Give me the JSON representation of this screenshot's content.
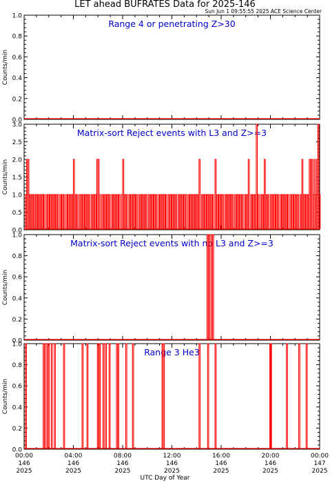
{
  "header": {
    "title": "LET ahead BUFRATES Data for 2025-146",
    "timestamp": "Sun Jun  1 09:55:55 2025 ACE Science Center"
  },
  "x_axis": {
    "title": "UTC Day of Year",
    "ticks": [
      {
        "hour": 0,
        "lines": [
          "00:00",
          "146",
          "2025"
        ]
      },
      {
        "hour": 4,
        "lines": [
          "04:00",
          "146",
          "2025"
        ]
      },
      {
        "hour": 8,
        "lines": [
          "08:00",
          "146",
          "2025"
        ]
      },
      {
        "hour": 12,
        "lines": [
          "12:00",
          "146",
          "2025"
        ]
      },
      {
        "hour": 16,
        "lines": [
          "16:00",
          "146",
          "2025"
        ]
      },
      {
        "hour": 20,
        "lines": [
          "20:00",
          "146",
          "2025"
        ]
      },
      {
        "hour": 24,
        "lines": [
          "00:00",
          "147",
          "2025"
        ]
      }
    ]
  },
  "colors": {
    "data": "#ff0000",
    "label": "#0000cc",
    "axes": "#000000"
  },
  "chart_data": [
    {
      "type": "line",
      "title": "Range 4 or  penetrating Z>30",
      "ylabel": "Counts/min",
      "xlim": [
        0,
        24
      ],
      "ylim": [
        0,
        1
      ],
      "yticks": [
        "0.0",
        "0.2",
        "0.4",
        "0.6",
        "0.8",
        "1.0"
      ],
      "spikes": []
    },
    {
      "type": "line",
      "title": "Matrix-sort Reject events with L3 and Z>=3",
      "ylabel": "Counts/min",
      "xlim": [
        0,
        24
      ],
      "ylim": [
        0,
        3
      ],
      "yticks": [
        "0.0",
        "0.5",
        "1.0",
        "1.5",
        "2.0",
        "2.5",
        "3.0"
      ],
      "spikes": [
        [
          0.1,
          1
        ],
        [
          0.2,
          2
        ],
        [
          0.3,
          2
        ],
        [
          0.45,
          1
        ],
        [
          0.6,
          1
        ],
        [
          0.75,
          1
        ],
        [
          0.85,
          1
        ],
        [
          1.0,
          1
        ],
        [
          1.15,
          1
        ],
        [
          1.3,
          1
        ],
        [
          1.45,
          1
        ],
        [
          1.6,
          1
        ],
        [
          1.8,
          1
        ],
        [
          1.95,
          1
        ],
        [
          2.1,
          1
        ],
        [
          2.25,
          1
        ],
        [
          2.4,
          1
        ],
        [
          2.55,
          1
        ],
        [
          2.7,
          1
        ],
        [
          2.9,
          1
        ],
        [
          3.05,
          1
        ],
        [
          3.2,
          1
        ],
        [
          3.4,
          1
        ],
        [
          3.55,
          1
        ],
        [
          3.7,
          1
        ],
        [
          3.85,
          1
        ],
        [
          4.0,
          2
        ],
        [
          4.15,
          1
        ],
        [
          4.3,
          1
        ],
        [
          4.5,
          1
        ],
        [
          4.65,
          1
        ],
        [
          4.8,
          1
        ],
        [
          4.95,
          1
        ],
        [
          5.1,
          1
        ],
        [
          5.25,
          1
        ],
        [
          5.45,
          1
        ],
        [
          5.6,
          1
        ],
        [
          5.75,
          1
        ],
        [
          5.9,
          2
        ],
        [
          6.0,
          2
        ],
        [
          6.1,
          1
        ],
        [
          6.3,
          1
        ],
        [
          6.45,
          1
        ],
        [
          6.6,
          1
        ],
        [
          6.75,
          1
        ],
        [
          6.9,
          1
        ],
        [
          7.1,
          1
        ],
        [
          7.25,
          1
        ],
        [
          7.4,
          1
        ],
        [
          7.55,
          1
        ],
        [
          7.7,
          1
        ],
        [
          7.9,
          1
        ],
        [
          8.0,
          2
        ],
        [
          8.15,
          1
        ],
        [
          8.3,
          1
        ],
        [
          8.5,
          1
        ],
        [
          8.65,
          1
        ],
        [
          8.8,
          1
        ],
        [
          8.95,
          1
        ],
        [
          9.1,
          1
        ],
        [
          9.3,
          1
        ],
        [
          9.45,
          1
        ],
        [
          9.6,
          1
        ],
        [
          9.75,
          1
        ],
        [
          9.9,
          1
        ],
        [
          10.1,
          1
        ],
        [
          10.25,
          1
        ],
        [
          10.4,
          1
        ],
        [
          10.55,
          1
        ],
        [
          10.7,
          1
        ],
        [
          10.9,
          1
        ],
        [
          11.05,
          1
        ],
        [
          11.2,
          1
        ],
        [
          11.35,
          1
        ],
        [
          11.5,
          1
        ],
        [
          11.7,
          1
        ],
        [
          11.85,
          1
        ],
        [
          12.0,
          1
        ],
        [
          12.15,
          1
        ],
        [
          12.3,
          1
        ],
        [
          12.5,
          1
        ],
        [
          12.65,
          1
        ],
        [
          12.8,
          1
        ],
        [
          12.95,
          1
        ],
        [
          13.1,
          1
        ],
        [
          13.3,
          1
        ],
        [
          13.45,
          1
        ],
        [
          13.6,
          1
        ],
        [
          13.75,
          1
        ],
        [
          13.9,
          1
        ],
        [
          14.05,
          1
        ],
        [
          14.2,
          2
        ],
        [
          14.4,
          1
        ],
        [
          14.55,
          1
        ],
        [
          14.7,
          1
        ],
        [
          14.85,
          1
        ],
        [
          15.0,
          1
        ],
        [
          15.15,
          1
        ],
        [
          15.3,
          1
        ],
        [
          15.5,
          2
        ],
        [
          15.65,
          1
        ],
        [
          15.8,
          1
        ],
        [
          15.95,
          1
        ],
        [
          16.1,
          1
        ],
        [
          16.3,
          1
        ],
        [
          16.45,
          1
        ],
        [
          16.6,
          1
        ],
        [
          16.75,
          1
        ],
        [
          16.9,
          1
        ],
        [
          17.1,
          1
        ],
        [
          17.25,
          1
        ],
        [
          17.4,
          1
        ],
        [
          17.55,
          1
        ],
        [
          17.7,
          1
        ],
        [
          17.9,
          1
        ],
        [
          18.05,
          1
        ],
        [
          18.2,
          2
        ],
        [
          18.4,
          1
        ],
        [
          18.55,
          1
        ],
        [
          18.7,
          1
        ],
        [
          18.85,
          3
        ],
        [
          19.0,
          1
        ],
        [
          19.2,
          1
        ],
        [
          19.35,
          1
        ],
        [
          19.5,
          2
        ],
        [
          19.65,
          1
        ],
        [
          19.8,
          1
        ],
        [
          20.0,
          1
        ],
        [
          20.15,
          1
        ],
        [
          20.3,
          1
        ],
        [
          20.45,
          1
        ],
        [
          20.6,
          1
        ],
        [
          20.8,
          1
        ],
        [
          20.95,
          1
        ],
        [
          21.1,
          1
        ],
        [
          21.25,
          1
        ],
        [
          21.4,
          1
        ],
        [
          21.6,
          1
        ],
        [
          21.75,
          1
        ],
        [
          21.9,
          1
        ],
        [
          22.05,
          1
        ],
        [
          22.2,
          1
        ],
        [
          22.4,
          1
        ],
        [
          22.55,
          2
        ],
        [
          22.7,
          1
        ],
        [
          22.85,
          1
        ],
        [
          23.0,
          1
        ],
        [
          23.15,
          2
        ],
        [
          23.25,
          2
        ],
        [
          23.35,
          2
        ],
        [
          23.45,
          1
        ],
        [
          23.55,
          2
        ],
        [
          23.65,
          1
        ],
        [
          23.75,
          2
        ],
        [
          23.85,
          3
        ],
        [
          23.95,
          1
        ]
      ]
    },
    {
      "type": "line",
      "title": "Matrix-sort Reject events with no L3 and Z>=3",
      "ylabel": "Counts/min",
      "xlim": [
        0,
        24
      ],
      "ylim": [
        0,
        1
      ],
      "yticks": [
        "0.0",
        "0.2",
        "0.4",
        "0.6",
        "0.8",
        "1.0"
      ],
      "spikes": [
        [
          14.85,
          1
        ],
        [
          15.0,
          1
        ],
        [
          15.2,
          1
        ],
        [
          15.3,
          1
        ]
      ]
    },
    {
      "type": "line",
      "title": "Range 3 He3",
      "ylabel": "Counts/min",
      "xlim": [
        0,
        24
      ],
      "ylim": [
        0,
        1
      ],
      "yticks": [
        "0.0",
        "0.2",
        "0.4",
        "0.6",
        "0.8",
        "1.0"
      ],
      "spikes": [
        [
          0.1,
          1
        ],
        [
          1.55,
          1
        ],
        [
          1.65,
          1
        ],
        [
          1.85,
          1
        ],
        [
          1.95,
          1
        ],
        [
          2.2,
          1
        ],
        [
          2.45,
          1
        ],
        [
          3.2,
          1
        ],
        [
          4.7,
          1
        ],
        [
          5.1,
          1
        ],
        [
          5.95,
          1
        ],
        [
          6.1,
          1
        ],
        [
          6.4,
          1
        ],
        [
          6.6,
          1
        ],
        [
          6.9,
          1
        ],
        [
          7.5,
          1
        ],
        [
          7.6,
          1
        ],
        [
          8.25,
          1
        ],
        [
          8.8,
          1
        ],
        [
          11.2,
          1
        ],
        [
          11.3,
          1
        ],
        [
          14.2,
          1
        ],
        [
          14.9,
          1
        ],
        [
          15.5,
          1
        ],
        [
          19.95,
          1
        ],
        [
          20.0,
          1
        ],
        [
          21.3,
          1
        ],
        [
          22.3,
          1
        ],
        [
          22.9,
          1
        ]
      ]
    }
  ]
}
